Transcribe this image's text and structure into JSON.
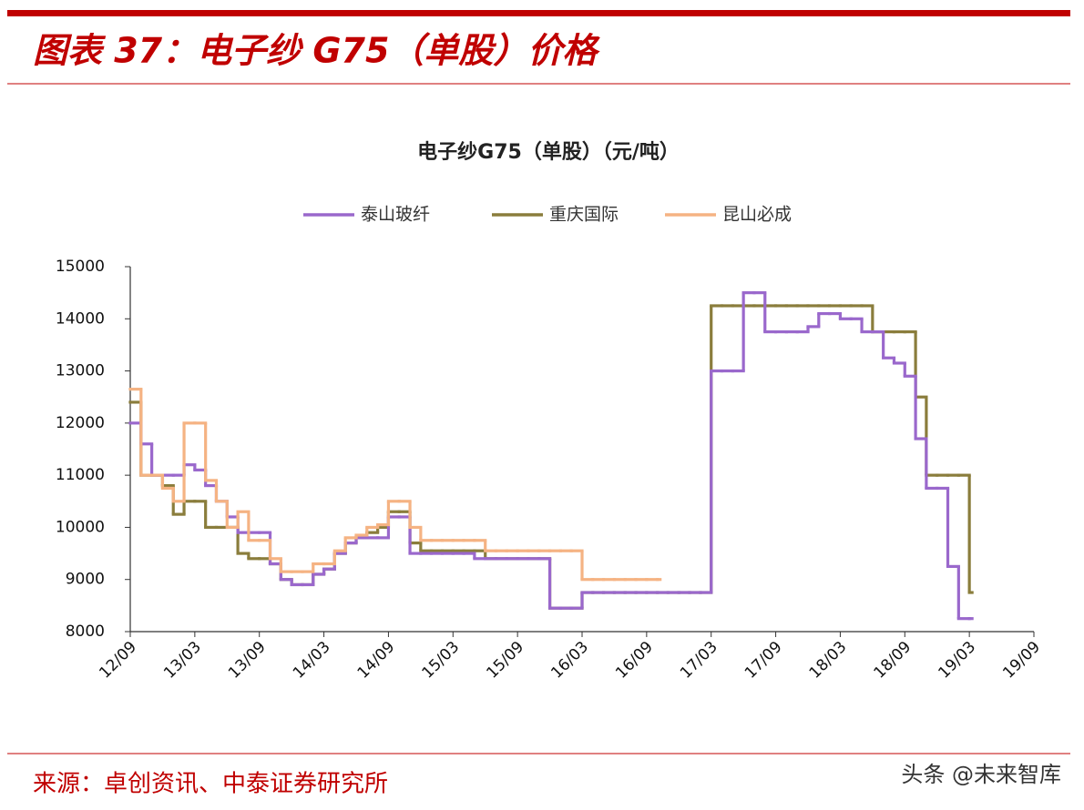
{
  "header": {
    "title": "图表 37：电子纱 G75（单股）价格"
  },
  "chart_data": {
    "type": "line",
    "title": "电子纱G75（单股）（元/吨）",
    "categories": [
      "12/09",
      null,
      null,
      null,
      null,
      null,
      "13/03",
      null,
      null,
      null,
      null,
      null,
      "13/09",
      null,
      null,
      null,
      null,
      null,
      "14/03",
      null,
      null,
      null,
      null,
      null,
      "14/09",
      null,
      null,
      null,
      null,
      null,
      "15/03",
      null,
      null,
      null,
      null,
      null,
      "15/09",
      null,
      null,
      null,
      null,
      null,
      "16/03",
      null,
      null,
      null,
      null,
      null,
      "16/09",
      null,
      null,
      null,
      null,
      null,
      "17/03",
      null,
      null,
      null,
      null,
      null,
      "17/09",
      null,
      null,
      null,
      null,
      null,
      "18/03",
      null,
      null,
      null,
      null,
      null,
      "18/09",
      null,
      null,
      null,
      null,
      null,
      "19/03",
      null,
      null,
      null,
      null,
      null,
      "19/09"
    ],
    "series": [
      {
        "name": "泰山玻纤",
        "color": "#9a68cc",
        "values": [
          12000,
          11600,
          11000,
          11000,
          11000,
          11200,
          11100,
          10800,
          10500,
          10200,
          9900,
          9900,
          9900,
          9300,
          9000,
          8900,
          8900,
          9100,
          9200,
          9500,
          9700,
          9800,
          9800,
          9800,
          10200,
          10200,
          9500,
          9500,
          9500,
          9500,
          9500,
          9500,
          9400,
          9400,
          9400,
          9400,
          9400,
          9400,
          9400,
          8450,
          8450,
          8450,
          8750,
          8750,
          8750,
          8750,
          8750,
          8750,
          8750,
          8750,
          8750,
          8750,
          8750,
          8750,
          13000,
          13000,
          13000,
          14500,
          14500,
          13750,
          13750,
          13750,
          13750,
          13850,
          14100,
          14100,
          14000,
          14000,
          13750,
          13750,
          13250,
          13150,
          12900,
          11700,
          10750,
          10750,
          9250,
          8250,
          8250,
          null,
          null,
          null,
          null,
          null,
          null
        ]
      },
      {
        "name": "重庆国际",
        "color": "#8a7d3c",
        "values": [
          12400,
          11000,
          11000,
          10800,
          10250,
          10500,
          10500,
          10000,
          10000,
          10000,
          9500,
          9400,
          9400,
          9300,
          9000,
          8900,
          8900,
          9100,
          9200,
          9500,
          9700,
          9800,
          9900,
          10000,
          10300,
          10300,
          9700,
          9550,
          9550,
          9550,
          9550,
          9550,
          9550,
          9400,
          9400,
          9400,
          9400,
          9400,
          9400,
          8450,
          8450,
          8450,
          8750,
          8750,
          8750,
          8750,
          8750,
          8750,
          8750,
          8750,
          8750,
          8750,
          8750,
          8750,
          14250,
          14250,
          14250,
          14250,
          14250,
          14250,
          14250,
          14250,
          14250,
          14250,
          14250,
          14250,
          14250,
          14250,
          14250,
          13750,
          13750,
          13750,
          13750,
          12500,
          11000,
          11000,
          11000,
          11000,
          8750,
          null,
          null,
          null,
          null,
          null,
          null
        ]
      },
      {
        "name": "昆山必成",
        "color": "#f5b383",
        "values": [
          12650,
          11000,
          11000,
          10750,
          10500,
          12000,
          12000,
          10900,
          10500,
          10000,
          10300,
          9750,
          9750,
          9400,
          9150,
          9150,
          9150,
          9300,
          9300,
          9550,
          9800,
          9850,
          10000,
          10050,
          10500,
          10500,
          10000,
          9750,
          9750,
          9750,
          9750,
          9750,
          9750,
          9550,
          9550,
          9550,
          9550,
          9550,
          9550,
          9550,
          9550,
          9550,
          9000,
          9000,
          9000,
          9000,
          9000,
          9000,
          9000,
          9000,
          null,
          null,
          null,
          null,
          null,
          null,
          null,
          null,
          null,
          null,
          null,
          null,
          null,
          null,
          null,
          null,
          null,
          null,
          null,
          null,
          null,
          null,
          null,
          null,
          null,
          null,
          null,
          null,
          null,
          null,
          null,
          null,
          null,
          null,
          null
        ]
      }
    ],
    "ylim": [
      8000,
      15000
    ],
    "yticks": [
      8000,
      9000,
      10000,
      11000,
      12000,
      13000,
      14000,
      15000
    ],
    "grid": false,
    "legend": "top"
  },
  "footer": {
    "source": "来源：卓创资讯、中泰证券研究所",
    "watermark": "头条 @未来智库"
  }
}
